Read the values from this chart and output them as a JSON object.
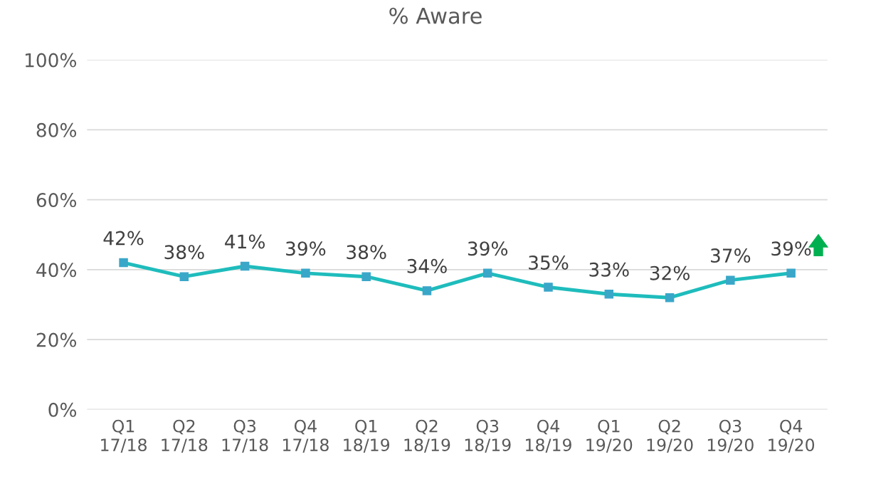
{
  "chart_data": {
    "type": "line",
    "title": "% Aware",
    "categories": [
      "Q1\n17/18",
      "Q2\n17/18",
      "Q3\n17/18",
      "Q4\n17/18",
      "Q1\n18/19",
      "Q2\n18/19",
      "Q3\n18/19",
      "Q4\n18/19",
      "Q1\n19/20",
      "Q2\n19/20",
      "Q3\n19/20",
      "Q4\n19/20"
    ],
    "series": [
      {
        "color": "#1fbcbc",
        "values": [
          42,
          38,
          41,
          39,
          38,
          34,
          39,
          35,
          33,
          32,
          37,
          39
        ],
        "value_labels": [
          "42%",
          "38%",
          "41%",
          "39%",
          "38%",
          "34%",
          "39%",
          "35%",
          "33%",
          "32%",
          "37%",
          "39%"
        ]
      }
    ],
    "ylim": [
      0,
      100
    ],
    "yticks": [
      {
        "value": 0,
        "label": "0%"
      },
      {
        "value": 20,
        "label": "20%"
      },
      {
        "value": 40,
        "label": "40%"
      },
      {
        "value": 60,
        "label": "60%"
      },
      {
        "value": 80,
        "label": "80%"
      },
      {
        "value": 100,
        "label": "100%"
      }
    ],
    "grid": "y",
    "marker": "square",
    "line_style": "solid"
  }
}
